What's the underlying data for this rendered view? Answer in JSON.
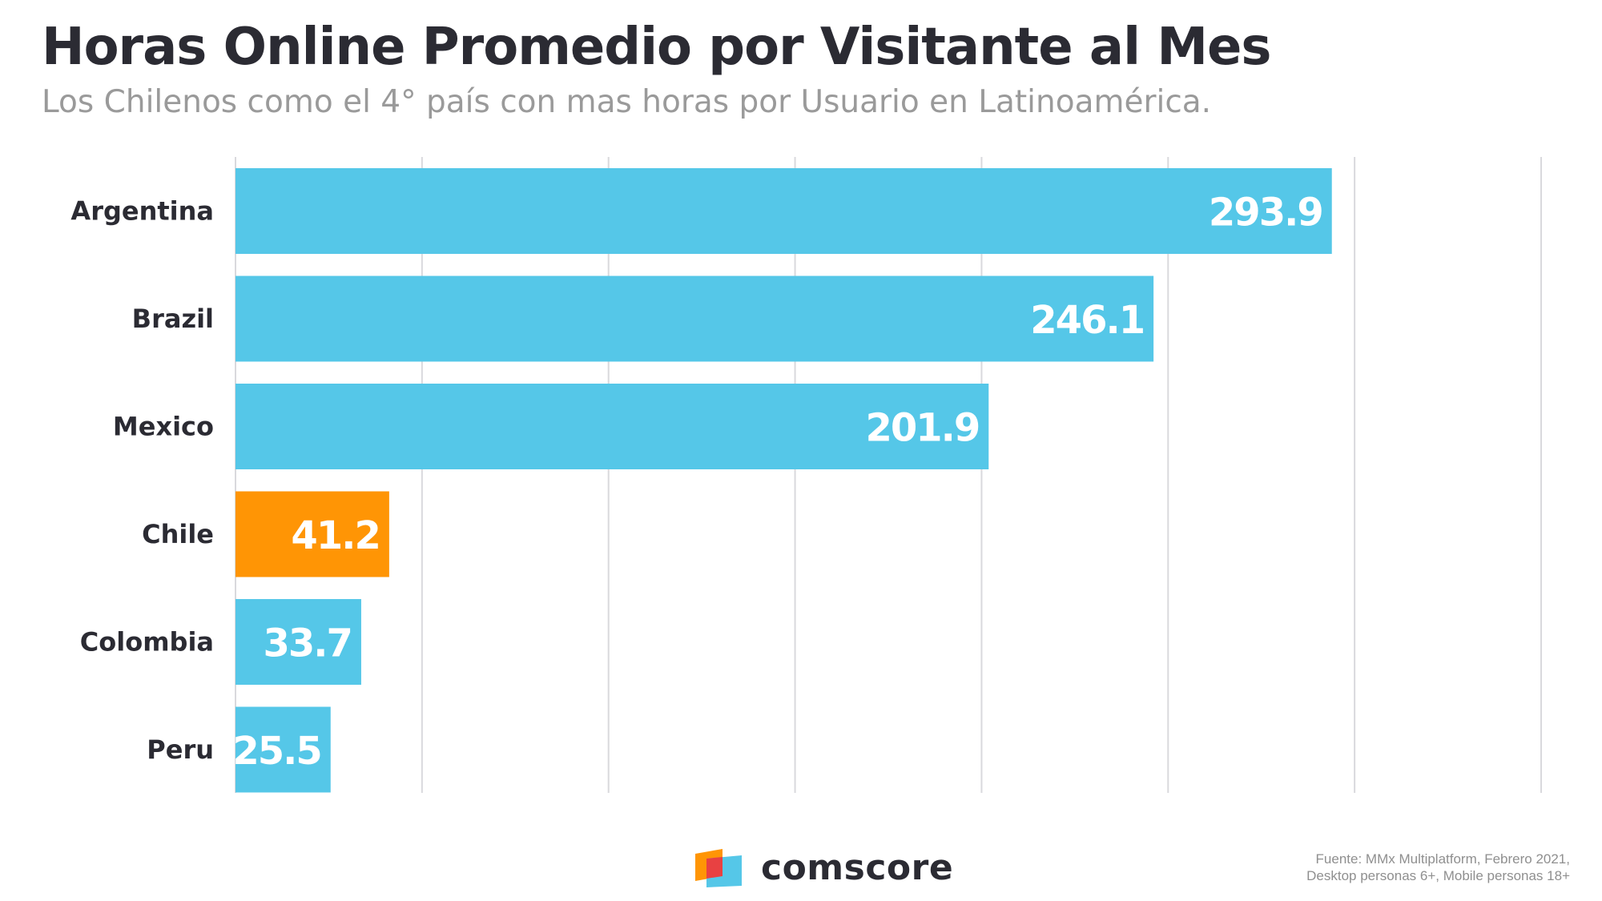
{
  "title": "Horas Online Promedio por Visitante al Mes",
  "subtitle": "Los Chilenos como el 4° país con mas horas por Usuario en Latinoamérica.",
  "chart_data": {
    "type": "bar",
    "orientation": "horizontal",
    "categories": [
      "Argentina",
      "Brazil",
      "Mexico",
      "Chile",
      "Colombia",
      "Peru"
    ],
    "values": [
      293.9,
      246.1,
      201.9,
      41.2,
      33.7,
      25.5
    ],
    "value_labels": [
      "293.9",
      "246.1",
      "201.9",
      "41.2",
      "33.7",
      "25.5"
    ],
    "highlight_category": "Chile",
    "xlim": [
      0,
      350
    ],
    "grid": true,
    "colors": {
      "default": "#55c7e8",
      "highlight": "#ff9505",
      "gridline": "#d9d9dd",
      "category_label": "#2b2b33",
      "value_label": "#ffffff"
    }
  },
  "logo": {
    "text": "comscore",
    "colors": {
      "orange": "#ff9505",
      "red": "#e84142",
      "blue": "#55c7e8"
    }
  },
  "source": {
    "line1": "Fuente: MMx Multiplatform, Febrero 2021,",
    "line2": "Desktop personas 6+, Mobile personas 18+"
  }
}
